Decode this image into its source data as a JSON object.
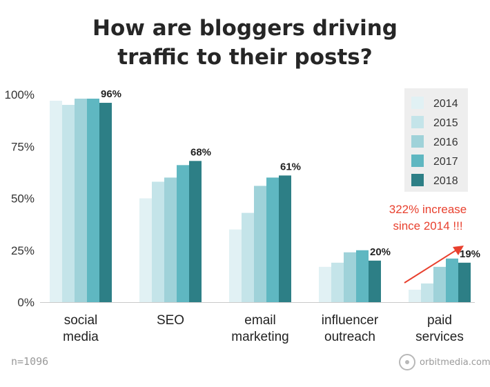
{
  "chart_data": {
    "type": "bar",
    "title_lines": [
      "How are bloggers driving",
      "traffic to their posts?"
    ],
    "categories": [
      [
        "social",
        "media"
      ],
      [
        "SEO"
      ],
      [
        "email",
        "marketing"
      ],
      [
        "influencer",
        "outreach"
      ],
      [
        "paid",
        "services"
      ]
    ],
    "series": [
      {
        "name": "2014",
        "color": "#e1f1f4",
        "values": [
          97,
          50,
          35,
          17,
          6
        ]
      },
      {
        "name": "2015",
        "color": "#c4e4e9",
        "values": [
          95,
          58,
          43,
          19,
          9
        ]
      },
      {
        "name": "2016",
        "color": "#9fd2d9",
        "values": [
          98,
          60,
          56,
          24,
          17
        ]
      },
      {
        "name": "2017",
        "color": "#5fb7c1",
        "values": [
          98,
          66,
          60,
          25,
          21
        ]
      },
      {
        "name": "2018",
        "color": "#2d7f86",
        "values": [
          96,
          68,
          61,
          20,
          19
        ]
      }
    ],
    "data_labels": [
      "96%",
      "68%",
      "61%",
      "20%",
      "19%"
    ],
    "yticks": [
      "0%",
      "25%",
      "50%",
      "75%",
      "100%"
    ],
    "ylim": [
      0,
      100
    ],
    "legend_position": "top-right",
    "grid": false
  },
  "annotation": {
    "lines": [
      "322% increase",
      "since 2014 !!!"
    ],
    "color": "#e8402e"
  },
  "footer": {
    "sample_size": "n=1096",
    "brand": "orbitmedia.com"
  }
}
